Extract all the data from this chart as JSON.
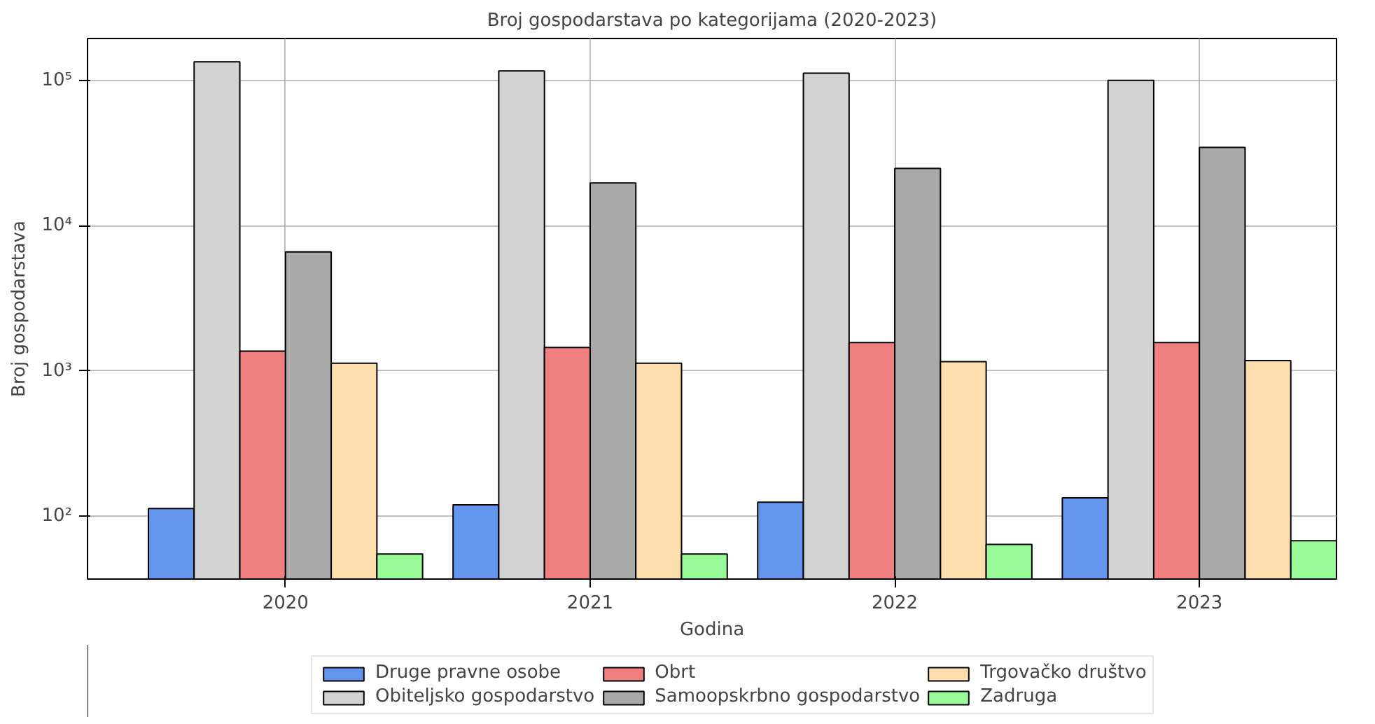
{
  "chart_data": {
    "type": "bar",
    "title": "Broj gospodarstava po kategorijama (2020-2023)",
    "xlabel": "Godina",
    "ylabel": "Broj gospodarstava",
    "categories": [
      "2020",
      "2021",
      "2022",
      "2023"
    ],
    "series": [
      {
        "name": "Druge pravne osobe",
        "color": "#6495ed",
        "values": [
          113,
          120,
          125,
          134
        ]
      },
      {
        "name": "Obiteljsko gospodarstvo",
        "color": "#d3d3d3",
        "values": [
          134000,
          116000,
          112000,
          100000
        ]
      },
      {
        "name": "Obrt",
        "color": "#f08080",
        "values": [
          1370,
          1450,
          1570,
          1570
        ]
      },
      {
        "name": "Samoopskrbno gospodarstvo",
        "color": "#a9a9a9",
        "values": [
          6600,
          19700,
          24800,
          34600
        ]
      },
      {
        "name": "Trgovačko društvo",
        "color": "#ffdead",
        "values": [
          1130,
          1130,
          1160,
          1180
        ]
      },
      {
        "name": "Zadruga",
        "color": "#98fb98",
        "values": [
          55,
          55,
          64,
          68
        ]
      }
    ],
    "log": "y",
    "ylim": [
      37,
      194000
    ],
    "yticks": [
      {
        "value": 100,
        "label": "10²"
      },
      {
        "value": 1000,
        "label": "10³"
      },
      {
        "value": 10000,
        "label": "10⁴"
      },
      {
        "value": 100000,
        "label": "10⁵"
      }
    ],
    "grid": true,
    "legend": "bottom"
  }
}
